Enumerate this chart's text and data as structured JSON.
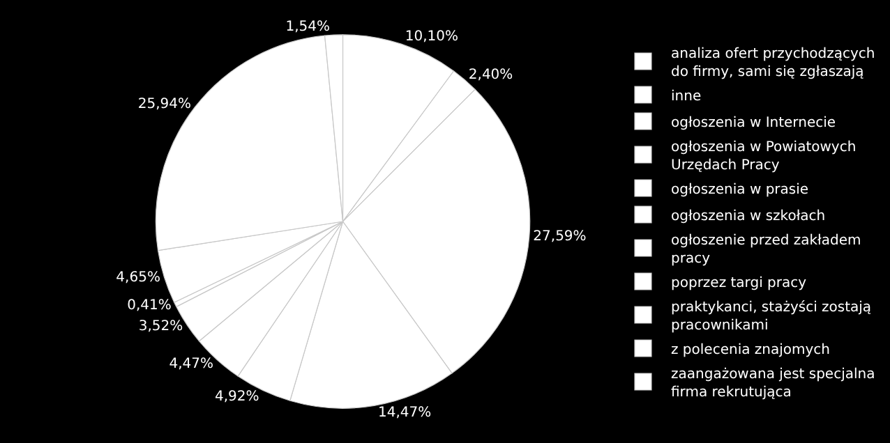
{
  "chart_data": {
    "type": "pie",
    "categories": [
      "analiza ofert przychodzących do firmy, sami się zgłaszają",
      "inne",
      "ogłoszenia w Internecie",
      "ogłoszenia w Powiatowych Urzędach Pracy",
      "ogłoszenia w prasie",
      "ogłoszenia w szkołach",
      "ogłoszenie przed zakładem pracy",
      "poprzez targi pracy",
      "praktykanci, stażyści zostają pracownikami",
      "z polecenia znajomych",
      "zaangażowana jest specjalna firma rekrutująca"
    ],
    "values": [
      10.1,
      2.4,
      27.59,
      14.47,
      4.92,
      4.47,
      3.52,
      0.41,
      4.65,
      25.94,
      1.54
    ],
    "value_labels": [
      "10,10%",
      "2,40%",
      "27,59%",
      "14,47%",
      "4,92%",
      "4,47%",
      "3,52%",
      "0,41%",
      "4,65%",
      "25,94%",
      "1,54%"
    ],
    "colors": [
      "#ffffff",
      "#ffffff",
      "#ffffff",
      "#ffffff",
      "#ffffff",
      "#ffffff",
      "#ffffff",
      "#ffffff",
      "#ffffff",
      "#ffffff",
      "#ffffff"
    ],
    "legend": "right"
  }
}
